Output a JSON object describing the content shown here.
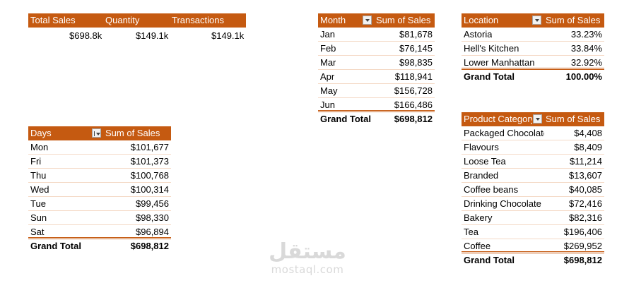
{
  "kpis": {
    "headers": [
      "Total Sales",
      "Quantity",
      "Transactions"
    ],
    "values": [
      "$698.8k",
      "$149.1k",
      "$149.1k"
    ]
  },
  "month_table": {
    "header_label": "Month",
    "header_value": "Sum of Sales",
    "filter_icon": "filter-dropdown-icon",
    "rows": [
      {
        "label": "Jan",
        "value": "$81,678"
      },
      {
        "label": "Feb",
        "value": "$76,145"
      },
      {
        "label": "Mar",
        "value": "$98,835"
      },
      {
        "label": "Apr",
        "value": "$118,941"
      },
      {
        "label": "May",
        "value": "$156,728"
      },
      {
        "label": "Jun",
        "value": "$166,486"
      }
    ],
    "total_label": "Grand Total",
    "total_value": "$698,812"
  },
  "location_table": {
    "header_label": "Location",
    "header_value": "Sum of Sales",
    "filter_icon": "filter-dropdown-icon",
    "rows": [
      {
        "label": "Astoria",
        "value": "33.23%"
      },
      {
        "label": "Hell's Kitchen",
        "value": "33.84%"
      },
      {
        "label": "Lower Manhattan",
        "value": "32.92%"
      }
    ],
    "total_label": "Grand Total",
    "total_value": "100.00%"
  },
  "days_table": {
    "header_label": "Days",
    "header_value": "Sum of Sales",
    "filter_icon": "sort-filter-icon",
    "rows": [
      {
        "label": "Mon",
        "value": "$101,677"
      },
      {
        "label": "Fri",
        "value": "$101,373"
      },
      {
        "label": "Thu",
        "value": "$100,768"
      },
      {
        "label": "Wed",
        "value": "$100,314"
      },
      {
        "label": "Tue",
        "value": "$99,456"
      },
      {
        "label": "Sun",
        "value": "$98,330"
      },
      {
        "label": "Sat",
        "value": "$96,894"
      }
    ],
    "total_label": "Grand Total",
    "total_value": "$698,812"
  },
  "category_table": {
    "header_label": "Product Category",
    "header_value": "Sum of Sales",
    "filter_icon": "filter-dropdown-icon",
    "rows": [
      {
        "label": "Packaged Chocolate",
        "value": "$4,408"
      },
      {
        "label": "Flavours",
        "value": "$8,409"
      },
      {
        "label": "Loose Tea",
        "value": "$11,214"
      },
      {
        "label": "Branded",
        "value": "$13,607"
      },
      {
        "label": "Coffee beans",
        "value": "$40,085"
      },
      {
        "label": "Drinking Chocolate",
        "value": "$72,416"
      },
      {
        "label": "Bakery",
        "value": "$82,316"
      },
      {
        "label": "Tea",
        "value": "$196,406"
      },
      {
        "label": "Coffee",
        "value": "$269,952"
      }
    ],
    "total_label": "Grand Total",
    "total_value": "$698,812"
  },
  "watermark": {
    "mark": "مستقل",
    "text": "mostaql.com"
  },
  "colors": {
    "header_bg": "#c55a11",
    "header_text": "#ffffff",
    "row_border": "#f4d9c6",
    "watermark": "#d9d9d9"
  }
}
